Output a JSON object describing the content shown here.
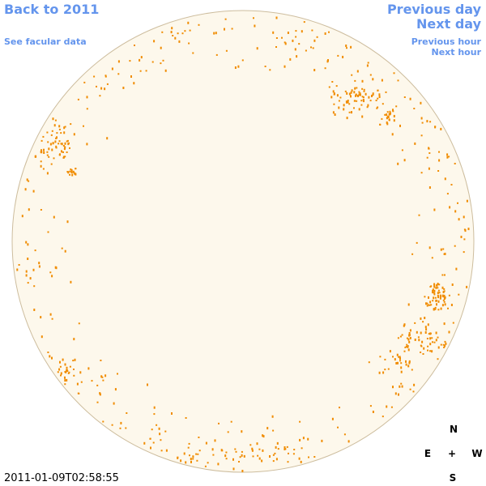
{
  "nav": {
    "back": "Back to 2011",
    "facular": "See facular data",
    "prev_day": "Previous day",
    "next_day": "Next day",
    "prev_hour": "Previous hour",
    "next_hour": "Next hour"
  },
  "timestamp": "2011-01-09T02:58:55",
  "compass": {
    "north": "N",
    "east": "E",
    "center": "+",
    "west": "W",
    "south": "S"
  }
}
